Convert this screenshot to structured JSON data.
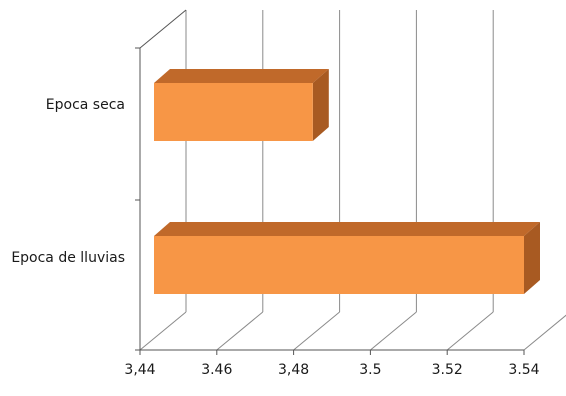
{
  "chart_data": {
    "type": "bar",
    "orientation": "horizontal",
    "three_d": true,
    "title": "",
    "xlabel": "",
    "ylabel": "",
    "categories": [
      "Epoca seca",
      "Epoca de lluvias"
    ],
    "values": [
      3.485,
      3.54
    ],
    "xlim": [
      3.44,
      3.54
    ],
    "x_ticks": [
      3.44,
      3.46,
      3.48,
      3.5,
      3.52,
      3.54
    ],
    "x_tick_labels": [
      "3,44",
      "3.46",
      "3,48",
      "3.5",
      "3.52",
      "3.54"
    ],
    "grid": true,
    "legend": "none",
    "bar_color": "#f79646",
    "bar_top_color": "#c0692a",
    "bar_side_color": "#a85a22"
  }
}
